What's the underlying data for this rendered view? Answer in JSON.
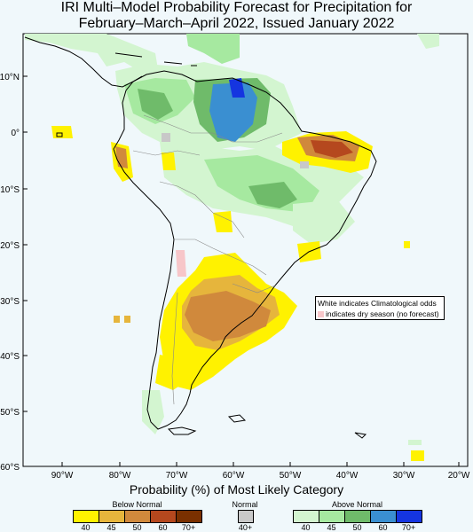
{
  "title": {
    "line1": "IRI Multi–Model Probability Forecast for Precipitation for",
    "line2": "February–March–April 2022, Issued January 2022"
  },
  "map": {
    "lat_labels": [
      "10°N",
      "0°",
      "10°S",
      "20°S",
      "30°S",
      "40°S",
      "50°S",
      "60°S"
    ],
    "lon_labels": [
      "90°W",
      "80°W",
      "70°W",
      "60°W",
      "50°W",
      "40°W",
      "30°W",
      "20°W"
    ]
  },
  "note_box": {
    "line1": "White indicates Climatological odds",
    "line2": "indicates dry season (no forecast)"
  },
  "legend": {
    "title": "Probability (%) of Most Likely Category",
    "below": {
      "name": "Below Normal",
      "labels": [
        "40",
        "45",
        "50",
        "60",
        "70+"
      ],
      "colors": [
        "#fff200",
        "#e6b53c",
        "#d0893c",
        "#b5481e",
        "#7a3000"
      ]
    },
    "normal": {
      "name": "Normal",
      "labels": [
        "40+"
      ],
      "colors": [
        "#c8c8c8"
      ]
    },
    "above": {
      "name": "Above Normal",
      "labels": [
        "40",
        "45",
        "50",
        "60",
        "70+"
      ],
      "colors": [
        "#d3f5d0",
        "#a6e9a0",
        "#6fbb6a",
        "#3a8fd1",
        "#1535e0"
      ]
    }
  }
}
